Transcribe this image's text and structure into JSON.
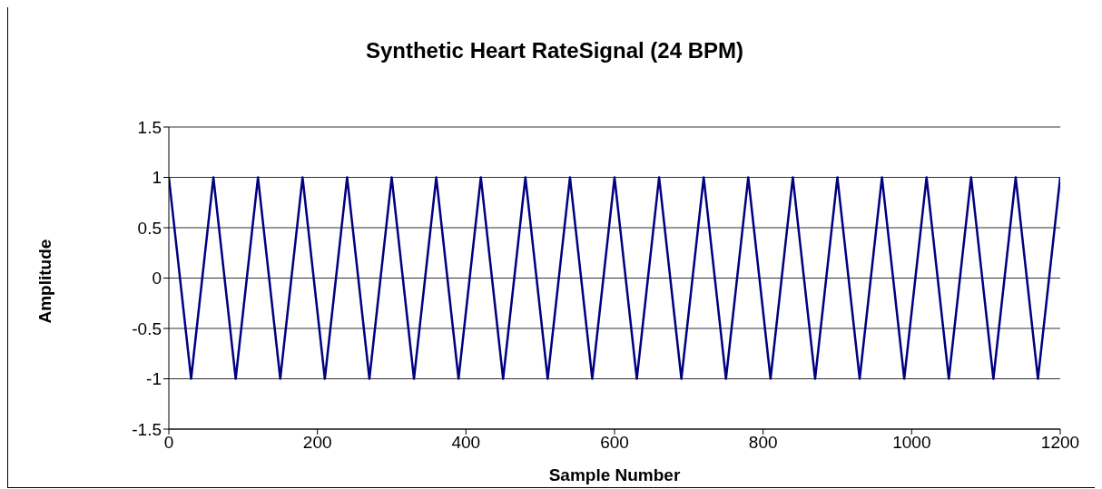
{
  "chart_data": {
    "type": "line",
    "title": "Synthetic Heart RateSignal (24 BPM)",
    "xlabel": "Sample Number",
    "ylabel": "Amplitude",
    "x": [
      0,
      15,
      30,
      45,
      60,
      75,
      90,
      105,
      120,
      135,
      150,
      165,
      180,
      195,
      210,
      225,
      240,
      255,
      270,
      285,
      300,
      315,
      330,
      345,
      360,
      375,
      390,
      405,
      420,
      435,
      450,
      465,
      480,
      495,
      510,
      525,
      540,
      555,
      570,
      585,
      600,
      615,
      630,
      645,
      660,
      675,
      690,
      705,
      720,
      735,
      750,
      765,
      780,
      795,
      810,
      825,
      840,
      855,
      870,
      885,
      900,
      915,
      930,
      945,
      960,
      975,
      990,
      1005,
      1020,
      1035,
      1050,
      1065,
      1080,
      1095,
      1110,
      1125,
      1140,
      1155,
      1170,
      1185,
      1200
    ],
    "series": [
      {
        "color": "#000080",
        "values": [
          1,
          0,
          -1,
          0,
          1,
          0,
          -1,
          0,
          1,
          0,
          -1,
          0,
          1,
          0,
          -1,
          0,
          1,
          0,
          -1,
          0,
          1,
          0,
          -1,
          0,
          1,
          0,
          -1,
          0,
          1,
          0,
          -1,
          0,
          1,
          0,
          -1,
          0,
          1,
          0,
          -1,
          0,
          1,
          0,
          -1,
          0,
          1,
          0,
          -1,
          0,
          1,
          0,
          -1,
          0,
          1,
          0,
          -1,
          0,
          1,
          0,
          -1,
          0,
          1,
          0,
          -1,
          0,
          1,
          0,
          -1,
          0,
          1,
          0,
          -1,
          0,
          1,
          0,
          -1,
          0,
          1,
          0,
          -1,
          0,
          1
        ]
      }
    ],
    "xlim": [
      0,
      1200
    ],
    "xticks": [
      0,
      200,
      400,
      600,
      800,
      1000,
      1200
    ],
    "ylim": [
      -1.5,
      1.5
    ],
    "yticks": [
      -1.5,
      -1,
      -0.5,
      0,
      0.5,
      1,
      1.5
    ],
    "grid": "y",
    "legend": false,
    "marker": "none",
    "line_style": "solid"
  }
}
